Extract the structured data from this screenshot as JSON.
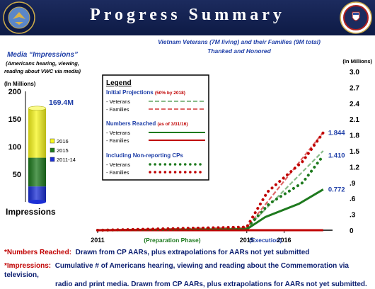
{
  "header": {
    "title": "Progress Summary"
  },
  "footnotes": {
    "numbers_label": "*Numbers Reached:",
    "numbers_text": "Drawn from CP AARs, plus extrapolations for AARs not yet submitted",
    "impressions_label": "*Impressions:",
    "impressions_text_1": "Cumulative # of Americans hearing, viewing  and reading  about the Commemoration via television,",
    "impressions_text_2": "radio and print media.  Drawn from CP AARs, plus extrapolations for AARs not yet submitted."
  },
  "colors": {
    "header": "#13235a",
    "blue_text": "#1f3fa8",
    "red_text": "#c00000",
    "green_text": "#1e7a1e",
    "bar_2016": "#f7f61e",
    "bar_2015": "#1e7a1e",
    "bar_2011_14": "#1b2fd6"
  },
  "chart_data": [
    {
      "type": "bar",
      "title": "Media  “Impressions”",
      "subtitle": "(Americans hearing, viewing, reading about VWC via media)",
      "ylabel": "(In Millions)",
      "xlabel": "Impressions",
      "ylim": [
        0,
        200
      ],
      "yticks": [
        "200",
        "150",
        "100",
        "50"
      ],
      "stacked": true,
      "categories": [
        "Impressions"
      ],
      "series": [
        {
          "name": "2011-14",
          "values": [
            28
          ],
          "color": "#1b2fd6"
        },
        {
          "name": "2015",
          "values": [
            52
          ],
          "color": "#1e7a1e"
        },
        {
          "name": "2016",
          "values": [
            89.4
          ],
          "color": "#f7f61e"
        }
      ],
      "total_label": "169.4M",
      "legend": [
        "2016",
        "2015",
        "2011-14"
      ],
      "legend_placement": "right"
    },
    {
      "type": "line",
      "title": "Vietnam Veterans (7M living) and their Families (9M total)",
      "subtitle": "Thanked and Honored",
      "ylabel": "(In Millions)",
      "ylim": [
        0,
        3.0
      ],
      "yticks": [
        "3.0",
        "2.7",
        "2.4",
        "2.1",
        "1.8",
        "1.5",
        "1.2",
        ".9",
        ".6",
        ".3",
        "0"
      ],
      "xticks": [
        "2011",
        "2015",
        "2016"
      ],
      "xlim": [
        2011,
        2017.3
      ],
      "phase_labels": [
        "(Preparation Phase)",
        "(Execution)"
      ],
      "legend": {
        "title": "Legend",
        "group1_title": "Initial Projections",
        "group1_note": "(50% by 2018)",
        "group2_title": "Numbers Reached",
        "group2_note": "(as of 3/31/16)",
        "group3_title": "Including Non-reporting CPs",
        "veterans": "- Veterans",
        "families": "- Families"
      },
      "series": [
        {
          "name": "Veterans",
          "group": "Initial Projections",
          "style": "dashed",
          "color": "#88bb88",
          "x": [
            2011,
            2015,
            2017.05
          ],
          "y": [
            0,
            0.04,
            1.5
          ]
        },
        {
          "name": "Families",
          "group": "Initial Projections",
          "style": "dashed",
          "color": "#dd6666",
          "x": [
            2011,
            2015,
            2017.05
          ],
          "y": [
            0,
            0.05,
            1.85
          ]
        },
        {
          "name": "Veterans",
          "group": "Numbers Reached",
          "style": "solid",
          "color": "#1e7a1e",
          "x": [
            2011,
            2015,
            2015.5,
            2016.4,
            2017.05
          ],
          "y": [
            0,
            0.02,
            0.25,
            0.5,
            0.772
          ]
        },
        {
          "name": "Families",
          "group": "Numbers Reached",
          "style": "solid",
          "color": "#c00000",
          "x": [
            2011,
            2017.05
          ],
          "y": [
            0,
            0
          ]
        },
        {
          "name": "Veterans",
          "group": "Including Non-reporting CPs",
          "style": "dotted",
          "color": "#1e7a1e",
          "x": [
            2011,
            2015,
            2015.6,
            2016.5,
            2017.05
          ],
          "y": [
            0,
            0.04,
            0.5,
            0.9,
            1.41
          ]
        },
        {
          "name": "Families",
          "group": "Including Non-reporting CPs",
          "style": "dotted",
          "color": "#c00000",
          "x": [
            2011,
            2015,
            2015.55,
            2016.5,
            2017.05
          ],
          "y": [
            0,
            0.06,
            0.72,
            1.3,
            1.844
          ]
        }
      ],
      "annotations": [
        "1.844",
        "1.410",
        "0.772"
      ]
    }
  ]
}
